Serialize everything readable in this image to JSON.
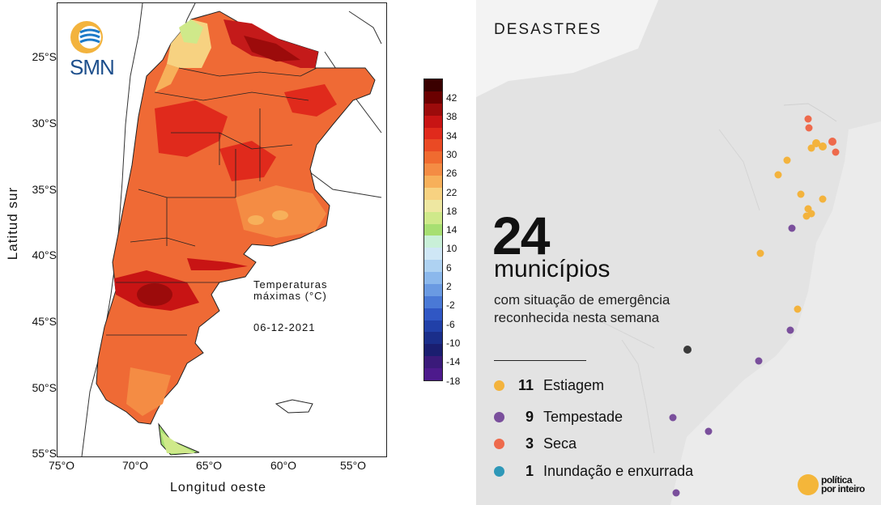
{
  "left_map": {
    "logo_text": "SMN",
    "title_lines": [
      "Temperaturas",
      "máximas (°C)"
    ],
    "date": "06-12-2021",
    "ylabel": "Latitud sur",
    "xlabel": "Longitud oeste",
    "lat_ticks": [
      "25°S",
      "30°S",
      "35°S",
      "40°S",
      "45°S",
      "50°S",
      "55°S"
    ],
    "lon_ticks": [
      "75°O",
      "70°O",
      "65°O",
      "60°O",
      "55°O"
    ],
    "colorbar": {
      "labels": [
        "42",
        "38",
        "34",
        "30",
        "26",
        "22",
        "18",
        "14",
        "10",
        "6",
        "2",
        "-2",
        "-6",
        "-10",
        "-14",
        "-18"
      ],
      "colors": [
        "#3a0000",
        "#6b0000",
        "#9c0b0b",
        "#c81414",
        "#e02a1c",
        "#ea4a24",
        "#f06b30",
        "#f48c44",
        "#f7b05a",
        "#f7d281",
        "#eee7a1",
        "#cfe98a",
        "#a7df72",
        "#c9f0d8",
        "#cfe7f6",
        "#aed2f2",
        "#8bb8ec",
        "#6a9ae2",
        "#4a79d6",
        "#3057c4",
        "#2140a8",
        "#1a2e8a",
        "#1a1e70",
        "#3a1a7a",
        "#4d1a8c"
      ]
    }
  },
  "right_panel": {
    "kicker": "DESASTRES",
    "count": "24",
    "count_label": "municípios",
    "description": "com situação de emergência reconhecida nesta semana",
    "legend": [
      {
        "count": "11",
        "label": "Estiagem",
        "color": "#f3b33d"
      },
      {
        "count": "9",
        "label": "Tempestade",
        "color": "#7a4f9c"
      },
      {
        "count": "3",
        "label": "Seca",
        "color": "#ee6a4c"
      },
      {
        "count": "1",
        "label": "Inundação e enxurrada",
        "color": "#2e98b8"
      }
    ],
    "brand_lines": [
      "política",
      "por inteiro"
    ]
  }
}
